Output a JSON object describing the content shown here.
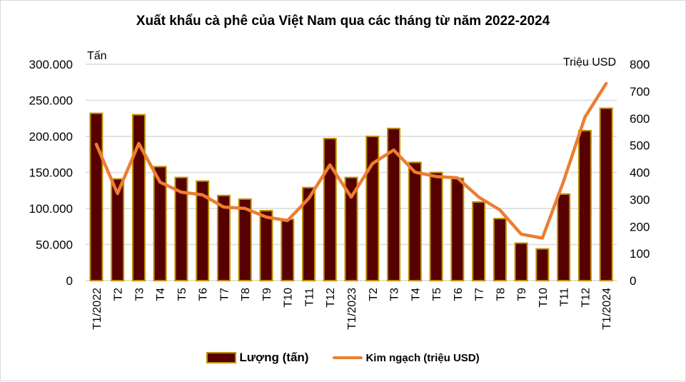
{
  "chart_data": {
    "type": "bar+line",
    "title": "Xuất khẩu cà phê của Việt Nam qua các tháng từ năm 2022-2024",
    "categories": [
      "T1/2022",
      "T2",
      "T3",
      "T4",
      "T5",
      "T6",
      "T7",
      "T8",
      "T9",
      "T10",
      "T11",
      "T12",
      "T1/2023",
      "T2",
      "T3",
      "T4",
      "T5",
      "T6",
      "T7",
      "T8",
      "T9",
      "T10",
      "T11",
      "T12",
      "T1/2024"
    ],
    "series": [
      {
        "name": "Lượng (tấn)",
        "type": "bar",
        "axis": "left",
        "color": "#560000",
        "border_color": "#bf9000",
        "values": [
          232000,
          141000,
          230000,
          158000,
          143000,
          138000,
          118000,
          113000,
          97000,
          85000,
          129000,
          197000,
          143000,
          200000,
          211000,
          164000,
          150000,
          142000,
          109000,
          86000,
          52000,
          44000,
          120000,
          208000,
          239000
        ]
      },
      {
        "name": "Kim ngạch (triệu USD)",
        "type": "line",
        "axis": "right",
        "color": "#ed7d31",
        "values": [
          504,
          322,
          507,
          364,
          327,
          317,
          272,
          267,
          235,
          222,
          304,
          428,
          309,
          433,
          483,
          401,
          385,
          380,
          309,
          261,
          172,
          157,
          368,
          604,
          729
        ]
      }
    ],
    "left_axis": {
      "label": "Tấn",
      "ylim": [
        0,
        300000
      ],
      "ticks": [
        0,
        50000,
        100000,
        150000,
        200000,
        250000,
        300000
      ],
      "tick_labels": [
        "0",
        "50.000",
        "100.000",
        "150.000",
        "200.000",
        "250.000",
        "300.000"
      ]
    },
    "right_axis": {
      "label": "Triệu USD",
      "ylim": [
        0,
        800
      ],
      "ticks": [
        0,
        100,
        200,
        300,
        400,
        500,
        600,
        700,
        800
      ],
      "tick_labels": [
        "0",
        "100",
        "200",
        "300",
        "400",
        "500",
        "600",
        "700",
        "800"
      ]
    },
    "grid": true,
    "legend_position": "bottom"
  },
  "legend": {
    "bar_label": "Lượng (tấn)",
    "line_label": "Kim ngạch (triệu USD)"
  }
}
